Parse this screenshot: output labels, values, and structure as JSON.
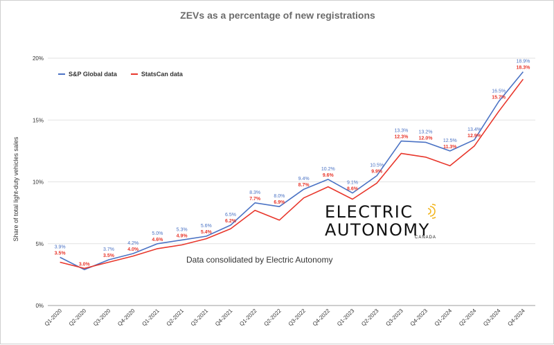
{
  "chart_data": {
    "type": "line",
    "title": "ZEVs as a percentage of new registrations",
    "ylabel": "Share of total light-duty vehicles sales",
    "xlabel": "",
    "ylim": [
      0,
      20
    ],
    "yticks": [
      "0%",
      "5%",
      "10%",
      "15%",
      "20%"
    ],
    "yticks_values": [
      0,
      5,
      10,
      15,
      20
    ],
    "grid": "horizontal",
    "legend_position": "top-left",
    "categories": [
      "Q1-2020",
      "Q2-2020",
      "Q3-2020",
      "Q4-2020",
      "Q1-2021",
      "Q2-2021",
      "Q3-2021",
      "Q4-2021",
      "Q1-2022",
      "Q2-2022",
      "Q3-2022",
      "Q4-2022",
      "Q1-2023",
      "Q2-2023",
      "Q3-2023",
      "Q4-2023",
      "Q1-2024",
      "Q2-2024",
      "Q3-2024",
      "Q4-2024"
    ],
    "series": [
      {
        "name": "S&P Global data",
        "color": "#4a72c4",
        "values": [
          3.9,
          2.9,
          3.7,
          4.2,
          5.0,
          5.3,
          5.6,
          6.5,
          8.3,
          8.0,
          9.4,
          10.2,
          9.1,
          10.5,
          13.3,
          13.2,
          12.5,
          13.4,
          16.5,
          18.9
        ],
        "labels": [
          "3.9%",
          "",
          "3.7%",
          "4.2%",
          "5.0%",
          "5.3%",
          "5.6%",
          "6.5%",
          "8.3%",
          "8.0%",
          "9.4%",
          "10.2%",
          "9.1%",
          "10.5%",
          "13.3%",
          "13.2%",
          "12.5%",
          "13.4%",
          "16.5%",
          "18.9%"
        ]
      },
      {
        "name": "StatsCan data",
        "color": "#e8362b",
        "values": [
          3.5,
          3.0,
          3.5,
          4.0,
          4.6,
          4.9,
          5.4,
          6.2,
          7.7,
          6.9,
          8.7,
          9.6,
          8.6,
          9.9,
          12.3,
          12.0,
          11.3,
          12.9,
          15.7,
          18.3
        ],
        "labels": [
          "3.5%",
          "3.0%",
          "3.5%",
          "4.0%",
          "4.6%",
          "4.9%",
          "5.4%",
          "6.2%",
          "7.7%",
          "6.9%",
          "8.7%",
          "9.6%",
          "8.6%",
          "9.9%",
          "12.3%",
          "12.0%",
          "11.3%",
          "12.9%",
          "15.7%",
          "18.3%"
        ]
      }
    ]
  },
  "annotations": {
    "source_note": "Data consolidated by Electric Autonomy"
  },
  "logo": {
    "line1": "ELECTRIC",
    "line2": "AUTONOMY",
    "sub": "CANADA"
  },
  "colors": {
    "title": "#6b6b6b",
    "grid": "#e2e2e2",
    "axis_text": "#333333"
  }
}
